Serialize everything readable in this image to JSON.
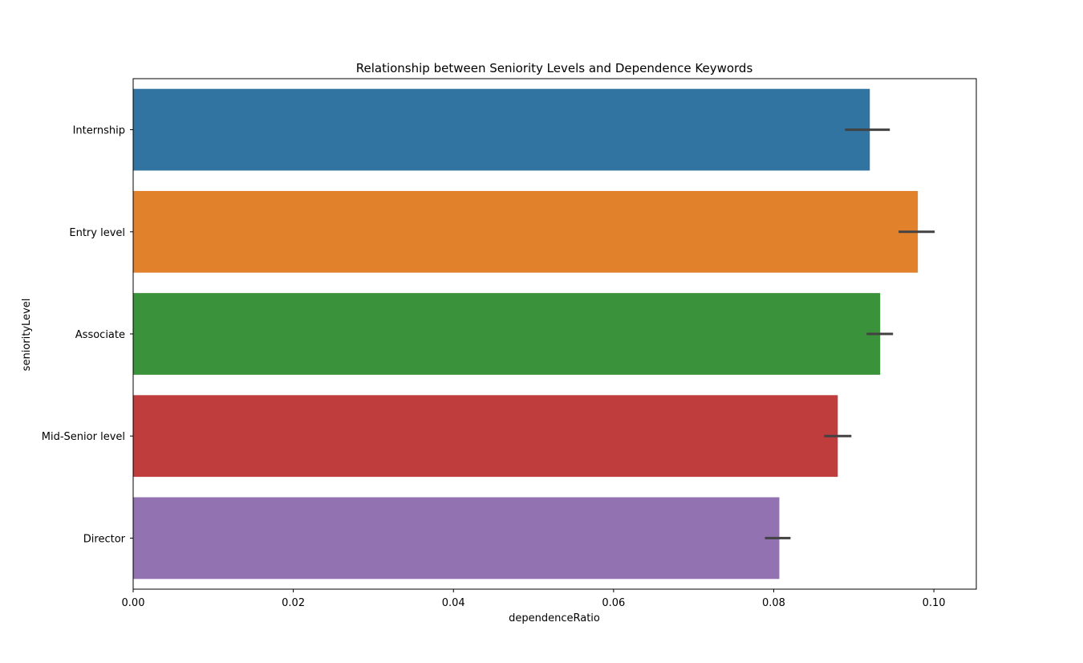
{
  "chart_data": {
    "type": "bar",
    "orientation": "horizontal",
    "title": "Relationship between Seniority Levels and Dependence Keywords",
    "xlabel": "dependenceRatio",
    "ylabel": "seniorityLevel",
    "xlim": [
      0,
      0.1053
    ],
    "xticks": [
      0.0,
      0.02,
      0.04,
      0.06,
      0.08,
      0.1
    ],
    "xtick_labels": [
      "0.00",
      "0.02",
      "0.04",
      "0.06",
      "0.08",
      "0.10"
    ],
    "grid": false,
    "legend": "none",
    "categories": [
      "Internship",
      "Entry level",
      "Associate",
      "Mid-Senior level",
      "Director"
    ],
    "values": [
      0.092,
      0.098,
      0.0933,
      0.088,
      0.0807
    ],
    "error_low": [
      0.0889,
      0.0956,
      0.0916,
      0.0863,
      0.0789
    ],
    "error_high": [
      0.0945,
      0.1001,
      0.0949,
      0.0897,
      0.0821
    ],
    "colors": [
      "#3274a1",
      "#e1812c",
      "#3a923a",
      "#c03d3e",
      "#9372b2"
    ],
    "error_color": "#424242"
  }
}
